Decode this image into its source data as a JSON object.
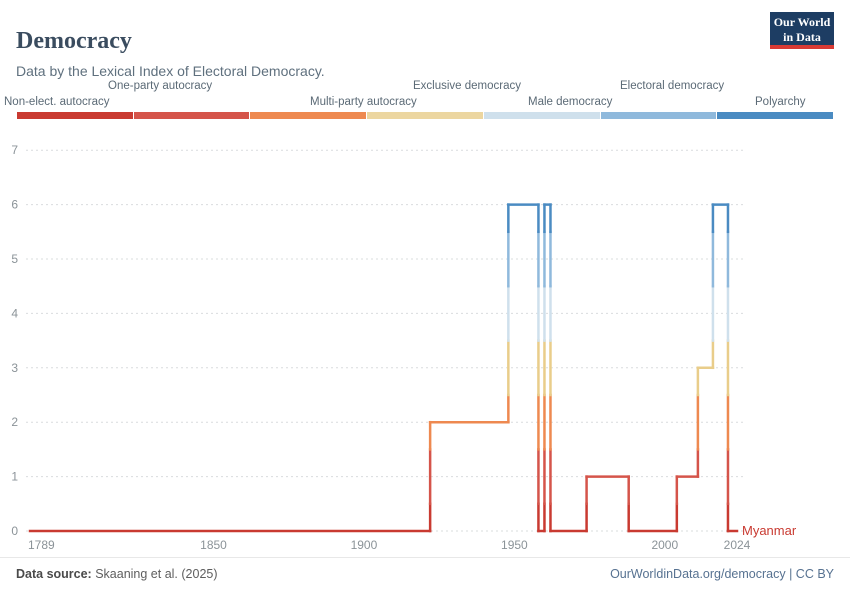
{
  "header": {
    "title": "Democracy",
    "subtitle": "Data by the Lexical Index of Electoral Democracy.",
    "logo": {
      "line1": "Our World",
      "line2": "in Data",
      "bg": "#1d3d63",
      "accent": "#d93a34"
    }
  },
  "legend": {
    "items": [
      {
        "label": "Non-elect. autocracy",
        "color": "#c93a31",
        "row": "bottom"
      },
      {
        "label": "One-party autocracy",
        "color": "#d5544a",
        "row": "top"
      },
      {
        "label": "Multi-party autocracy",
        "color": "#ee8950",
        "row": "bottom"
      },
      {
        "label": "Exclusive democracy",
        "color": "#ecd6a0",
        "row": "top"
      },
      {
        "label": "Male democracy",
        "color": "#cfe0ec",
        "row": "bottom"
      },
      {
        "label": "Electoral democracy",
        "color": "#8fb9dc",
        "row": "top"
      },
      {
        "label": "Polyarchy",
        "color": "#4a8bc2",
        "row": "bottom"
      }
    ]
  },
  "chart_data": {
    "type": "line",
    "title": "Democracy",
    "subtitle": "Data by the Lexical Index of Electoral Democracy.",
    "entity": "Myanmar",
    "entity_color": "#c93a31",
    "x_range": [
      1789,
      2024
    ],
    "y_range": [
      0,
      7
    ],
    "x_ticks": [
      1789,
      1850,
      1900,
      1950,
      2000,
      2024
    ],
    "y_ticks": [
      0,
      1,
      2,
      3,
      4,
      5,
      6,
      7
    ],
    "grid": "horizontal-dashed",
    "steps": [
      {
        "year": 1789,
        "value": 0
      },
      {
        "year": 1922,
        "value": 2
      },
      {
        "year": 1948,
        "value": 6
      },
      {
        "year": 1958,
        "value": 0
      },
      {
        "year": 1960,
        "value": 6
      },
      {
        "year": 1962,
        "value": 0
      },
      {
        "year": 1974,
        "value": 1
      },
      {
        "year": 1988,
        "value": 0
      },
      {
        "year": 2004,
        "value": 1
      },
      {
        "year": 2011,
        "value": 3
      },
      {
        "year": 2016,
        "value": 6
      },
      {
        "year": 2021,
        "value": 0
      }
    ],
    "value_colors": {
      "0": "#c93a31",
      "1": "#d5544a",
      "2": "#ee8950",
      "3": "#e9cd8a",
      "4": "#cfe0ec",
      "5": "#8fb9dc",
      "6": "#4a8bc2"
    }
  },
  "footer": {
    "source_label": "Data source:",
    "source_value": " Skaaning et al. (2025)",
    "credit_link": "OurWorldinData.org/democracy",
    "credit_suffix": " | CC BY"
  }
}
